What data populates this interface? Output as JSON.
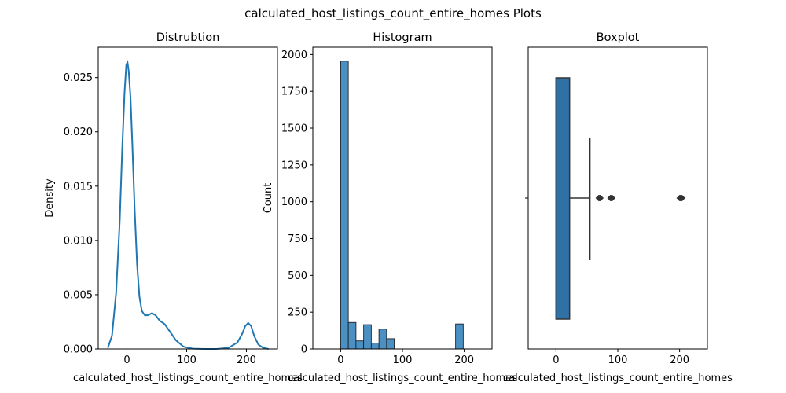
{
  "figure": {
    "suptitle": "calculated_host_listings_count_entire_homes Plots",
    "colors": {
      "line": "#1f77b4",
      "hist_fill": "#4a90c2",
      "box_fill": "#2f70a5",
      "dark": "#333333",
      "frame": "#000000"
    }
  },
  "chart_data": [
    {
      "type": "line",
      "title": "Distrubtion",
      "xlabel": "calculated_host_listings_count_entire_homes",
      "ylabel": "Density",
      "xlim": [
        -48,
        252
      ],
      "ylim": [
        0,
        0.0278
      ],
      "xticks": [
        {
          "v": 0,
          "label": "0"
        },
        {
          "v": 100,
          "label": "100"
        },
        {
          "v": 200,
          "label": "200"
        }
      ],
      "yticks": [
        {
          "v": 0,
          "label": "0.000"
        },
        {
          "v": 0.005,
          "label": "0.005"
        },
        {
          "v": 0.01,
          "label": "0.010"
        },
        {
          "v": 0.015,
          "label": "0.015"
        },
        {
          "v": 0.02,
          "label": "0.020"
        },
        {
          "v": 0.025,
          "label": "0.025"
        }
      ],
      "grid": false,
      "series": [
        {
          "x": [
            -32,
            -25,
            -18,
            -12,
            -8,
            -4,
            -1,
            1,
            3,
            6,
            9,
            13,
            17,
            21,
            25,
            30,
            35,
            42,
            48,
            55,
            63,
            72,
            82,
            95,
            110,
            130,
            150,
            170,
            185,
            193,
            198,
            203,
            208,
            213,
            220,
            228,
            237
          ],
          "y": [
            0.0001,
            0.0012,
            0.0052,
            0.0118,
            0.0182,
            0.0236,
            0.0262,
            0.0264,
            0.0256,
            0.0232,
            0.019,
            0.0128,
            0.0078,
            0.0048,
            0.0035,
            0.0031,
            0.0031,
            0.0033,
            0.0031,
            0.0026,
            0.0023,
            0.0016,
            0.0008,
            0.0002,
            3e-05,
            0.0,
            0.0,
            0.0001,
            0.0006,
            0.0014,
            0.0021,
            0.0024,
            0.0021,
            0.0012,
            0.0004,
            0.0001,
            0.0
          ]
        }
      ]
    },
    {
      "type": "bar",
      "title": "Histogram",
      "xlabel": "calculated_host_listings_count_entire_homes",
      "ylabel": "Count",
      "xlim": [
        -45,
        245
      ],
      "ylim": [
        0,
        2050
      ],
      "xticks": [
        {
          "v": 0,
          "label": "0"
        },
        {
          "v": 100,
          "label": "100"
        },
        {
          "v": 200,
          "label": "200"
        }
      ],
      "yticks": [
        {
          "v": 0,
          "label": "0"
        },
        {
          "v": 250,
          "label": "250"
        },
        {
          "v": 500,
          "label": "500"
        },
        {
          "v": 750,
          "label": "750"
        },
        {
          "v": 1000,
          "label": "1000"
        },
        {
          "v": 1250,
          "label": "1250"
        },
        {
          "v": 1500,
          "label": "1500"
        },
        {
          "v": 1750,
          "label": "1750"
        },
        {
          "v": 2000,
          "label": "2000"
        }
      ],
      "grid": false,
      "bin_width": 12.4,
      "bin_starts": [
        0,
        12.4,
        24.8,
        37.2,
        49.6,
        62,
        74.4,
        86.8,
        99.2,
        111.6,
        124,
        136.4,
        148.8,
        161.2,
        173.6,
        186
      ],
      "values": [
        1955,
        180,
        55,
        165,
        40,
        135,
        70,
        0,
        0,
        0,
        0,
        0,
        0,
        0,
        0,
        170
      ]
    },
    {
      "type": "box",
      "title": "Boxplot",
      "xlabel": "calculated_host_listings_count_entire_homes",
      "xlim": [
        -45,
        245
      ],
      "xticks": [
        {
          "v": 0,
          "label": "0"
        },
        {
          "v": 100,
          "label": "100"
        },
        {
          "v": 200,
          "label": "200"
        }
      ],
      "grid": false,
      "box": {
        "q1": 0,
        "median": 0,
        "q3": 22,
        "whisker_low": 0,
        "whisker_high": 55
      },
      "outliers": [
        69,
        70,
        71,
        72,
        88,
        89,
        90,
        91,
        200,
        201,
        202,
        203,
        204
      ]
    }
  ]
}
